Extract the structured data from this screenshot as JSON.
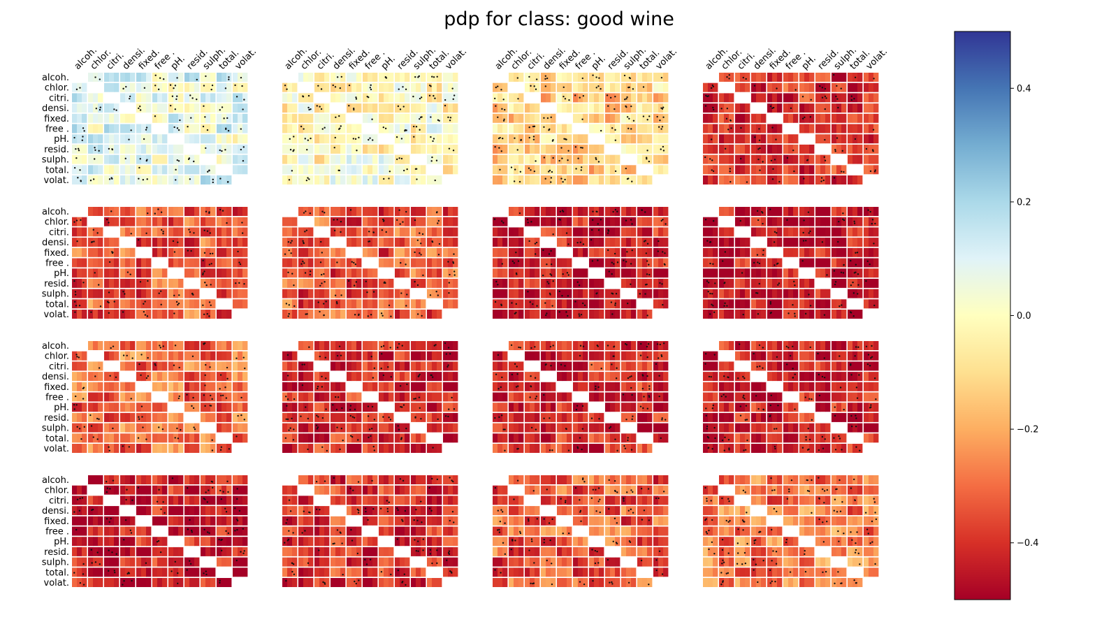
{
  "title": "pdp for class: good wine",
  "chart_data": {
    "type": "heatmap",
    "title": "pdp for class: good wine",
    "grid_layout": {
      "rows": 4,
      "cols": 4
    },
    "feature_labels": [
      "alcoh.",
      "chlor.",
      "citri.",
      "densi.",
      "fixed.",
      "free .",
      "pH.",
      "resid.",
      "sulph.",
      "total.",
      "volat."
    ],
    "panels": [
      {
        "row": 0,
        "col": 0,
        "mean_value": 0.08
      },
      {
        "row": 0,
        "col": 1,
        "mean_value": 0.0
      },
      {
        "row": 0,
        "col": 2,
        "mean_value": -0.12
      },
      {
        "row": 0,
        "col": 3,
        "mean_value": -0.4
      },
      {
        "row": 1,
        "col": 0,
        "mean_value": -0.33
      },
      {
        "row": 1,
        "col": 1,
        "mean_value": -0.33
      },
      {
        "row": 1,
        "col": 2,
        "mean_value": -0.44
      },
      {
        "row": 1,
        "col": 3,
        "mean_value": -0.46
      },
      {
        "row": 2,
        "col": 0,
        "mean_value": -0.3
      },
      {
        "row": 2,
        "col": 1,
        "mean_value": -0.42
      },
      {
        "row": 2,
        "col": 2,
        "mean_value": -0.42
      },
      {
        "row": 2,
        "col": 3,
        "mean_value": -0.44
      },
      {
        "row": 3,
        "col": 0,
        "mean_value": -0.44
      },
      {
        "row": 3,
        "col": 1,
        "mean_value": -0.4
      },
      {
        "row": 3,
        "col": 2,
        "mean_value": -0.33
      },
      {
        "row": 3,
        "col": 3,
        "mean_value": -0.28
      }
    ],
    "colorbar": {
      "colormap": "RdYlBu",
      "range": [
        -0.5,
        0.5
      ],
      "ticks": [
        0.4,
        0.2,
        0.0,
        -0.2,
        -0.4
      ],
      "tick_labels": [
        "0.4",
        "0.2",
        "0.0",
        "−0.2",
        "−0.4"
      ]
    }
  }
}
